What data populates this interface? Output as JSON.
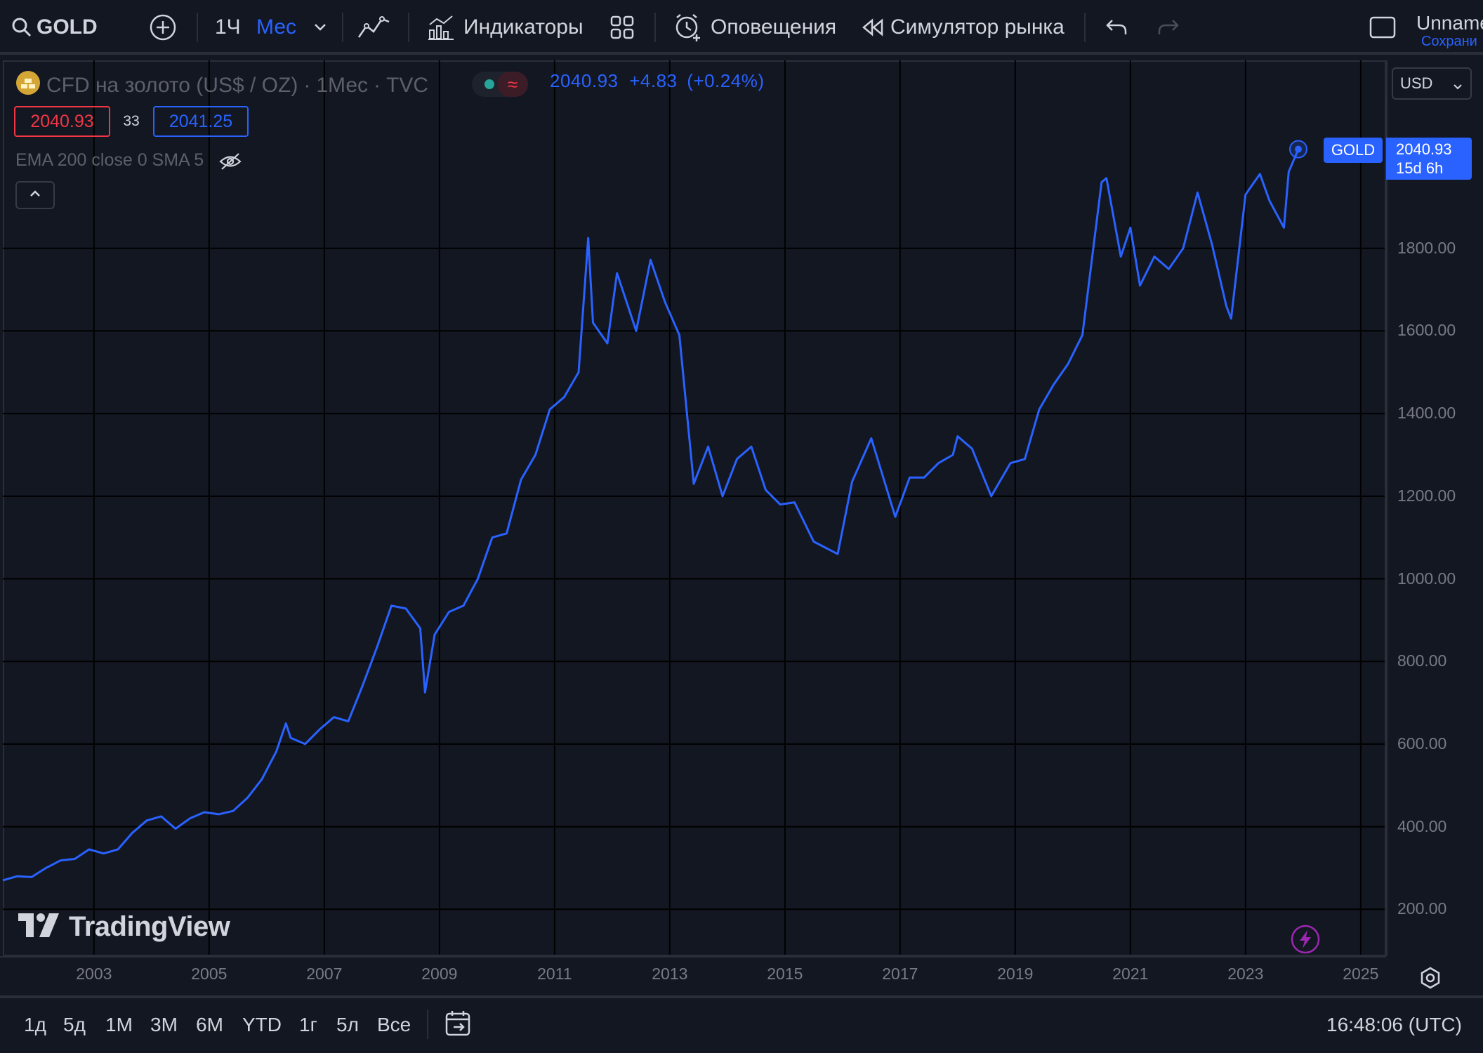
{
  "toolbar": {
    "symbol": "GOLD",
    "interval": "1Ч",
    "timeframe": "Мес",
    "indicators_label": "Индикаторы",
    "alerts_label": "Оповещения",
    "replay_label": "Симулятор рынка",
    "user_name": "Unnamed",
    "save_hint": "Сохрани"
  },
  "legend": {
    "title": "CFD на золото (US$ / OZ)",
    "interval": "1Мес",
    "exchange": "TVC",
    "delay_icon": "≈",
    "last": "2040.93",
    "change": "+4.83",
    "change_pct": "(+0.24%)",
    "bid": "2040.93",
    "spread": "33",
    "ask": "2041.25",
    "indicators": "EMA 200 close 0 SMA 5"
  },
  "price_scale": {
    "currency": "USD",
    "ticks": [
      "1800.00",
      "1600.00",
      "1400.00",
      "1200.00",
      "1000.00",
      "800.00",
      "600.00",
      "400.00",
      "200.00"
    ],
    "tag": "GOLD",
    "last_price": "2040.93",
    "countdown": "15d 6h"
  },
  "time_axis": {
    "ticks": [
      "2003",
      "2005",
      "2007",
      "2009",
      "2011",
      "2013",
      "2015",
      "2017",
      "2019",
      "2021",
      "2023",
      "2025"
    ]
  },
  "bottom_bar": {
    "ranges": [
      "1д",
      "5д",
      "1М",
      "3М",
      "6М",
      "YTD",
      "1г",
      "5л",
      "Все"
    ],
    "clock": "16:48:06 (UTC)"
  },
  "watermark": "TradingView",
  "colors": {
    "background": "#131722",
    "line": "#2962ff",
    "grid": "#000000",
    "bid": "#f23645"
  },
  "chart_data": {
    "type": "line",
    "series": [
      {
        "x": [
          "2001-06",
          "2001-09",
          "2001-12",
          "2002-03",
          "2002-06",
          "2002-09",
          "2002-12",
          "2003-03",
          "2003-06",
          "2003-09",
          "2003-12",
          "2004-03",
          "2004-06",
          "2004-09",
          "2004-12",
          "2005-03",
          "2005-06",
          "2005-09",
          "2005-12",
          "2006-03",
          "2006-05",
          "2006-06",
          "2006-09",
          "2006-12",
          "2007-03",
          "2007-06",
          "2007-09",
          "2007-12",
          "2008-03",
          "2008-06",
          "2008-09",
          "2008-10",
          "2008-12",
          "2009-03",
          "2009-06",
          "2009-09",
          "2009-12",
          "2010-03",
          "2010-06",
          "2010-09",
          "2010-12",
          "2011-03",
          "2011-06",
          "2011-08",
          "2011-09",
          "2011-12",
          "2012-02",
          "2012-06",
          "2012-09",
          "2012-12",
          "2013-03",
          "2013-06",
          "2013-09",
          "2013-12",
          "2014-03",
          "2014-06",
          "2014-09",
          "2014-12",
          "2015-03",
          "2015-07",
          "2015-12",
          "2016-03",
          "2016-07",
          "2016-12",
          "2017-03",
          "2017-06",
          "2017-09",
          "2017-12",
          "2018-01",
          "2018-04",
          "2018-08",
          "2018-12",
          "2019-03",
          "2019-06",
          "2019-09",
          "2019-12",
          "2020-03",
          "2020-07",
          "2020-08",
          "2020-11",
          "2021-01",
          "2021-03",
          "2021-06",
          "2021-09",
          "2021-12",
          "2022-03",
          "2022-06",
          "2022-09",
          "2022-10",
          "2023-01",
          "2023-04",
          "2023-06",
          "2023-09",
          "2023-10",
          "2023-12"
        ],
        "values": [
          270,
          280,
          278,
          300,
          318,
          322,
          345,
          335,
          345,
          385,
          415,
          425,
          395,
          420,
          435,
          430,
          438,
          470,
          515,
          582,
          650,
          615,
          600,
          635,
          665,
          655,
          742,
          835,
          935,
          928,
          880,
          725,
          865,
          920,
          935,
          1000,
          1100,
          1110,
          1240,
          1300,
          1410,
          1440,
          1500,
          1825,
          1620,
          1570,
          1740,
          1600,
          1772,
          1670,
          1590,
          1230,
          1320,
          1200,
          1290,
          1320,
          1215,
          1180,
          1185,
          1090,
          1060,
          1235,
          1340,
          1150,
          1245,
          1245,
          1280,
          1300,
          1345,
          1315,
          1200,
          1280,
          1290,
          1410,
          1470,
          1520,
          1590,
          1960,
          1970,
          1780,
          1850,
          1710,
          1780,
          1750,
          1800,
          1935,
          1810,
          1660,
          1630,
          1930,
          1980,
          1915,
          1850,
          1985,
          2040
        ]
      }
    ],
    "xlabel": "",
    "ylabel": "",
    "ylim": [
      90,
      2255
    ],
    "x_range": [
      "2001-06",
      "2025-06"
    ],
    "grid": true,
    "legend": "top-left",
    "line_color": "#2962ff"
  }
}
